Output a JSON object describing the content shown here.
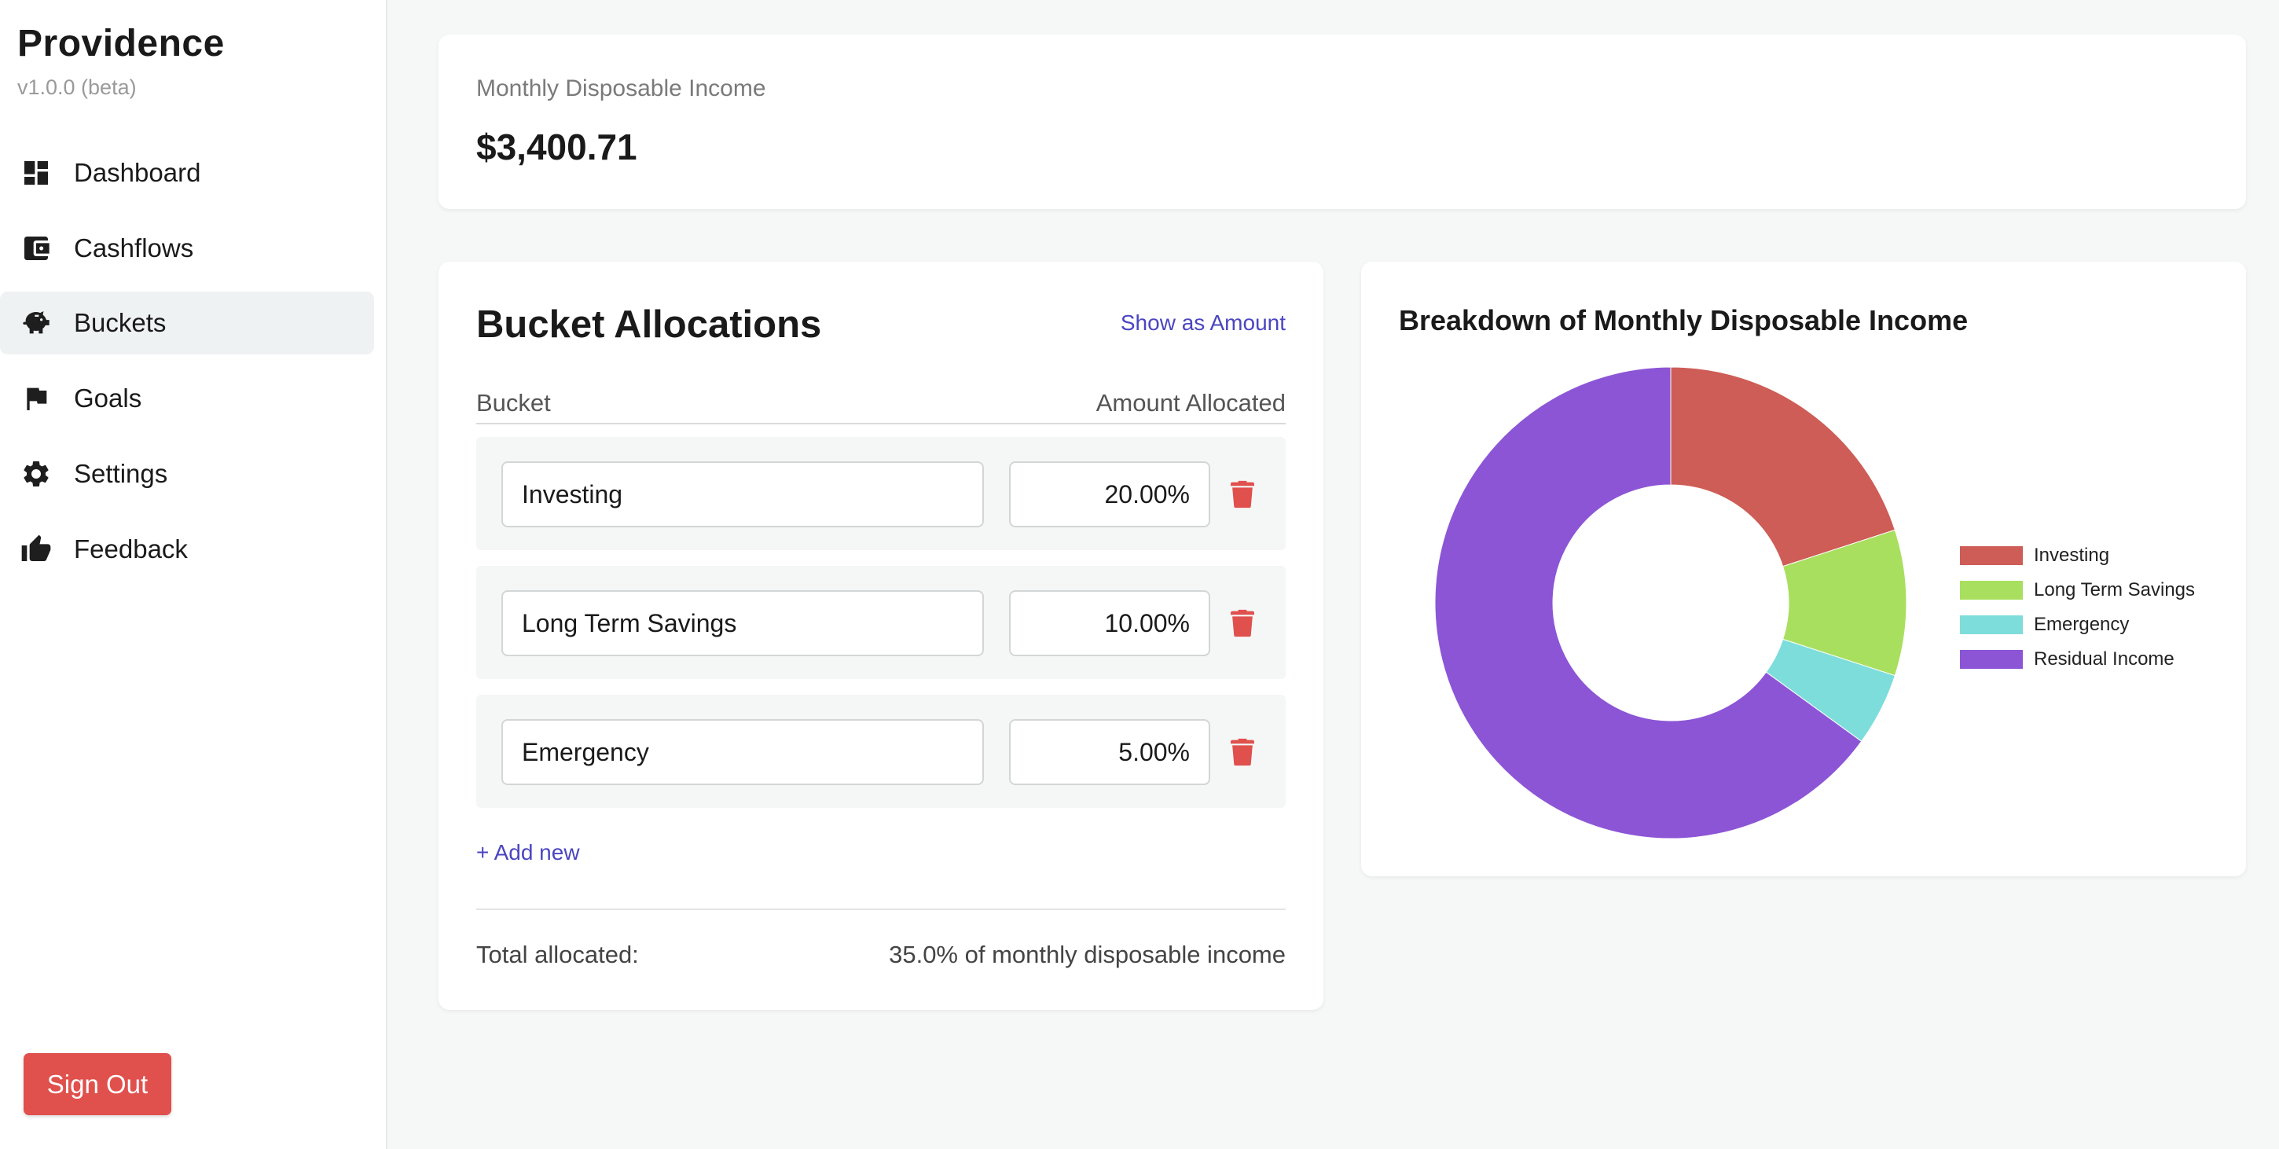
{
  "app": {
    "name": "Providence",
    "version": "v1.0.0 (beta)"
  },
  "sidebar": {
    "items": [
      {
        "label": "Dashboard",
        "icon": "dashboard-icon",
        "active": false
      },
      {
        "label": "Cashflows",
        "icon": "wallet-icon",
        "active": false
      },
      {
        "label": "Buckets",
        "icon": "piggy-bank-icon",
        "active": true
      },
      {
        "label": "Goals",
        "icon": "flag-icon",
        "active": false
      },
      {
        "label": "Settings",
        "icon": "gear-icon",
        "active": false
      },
      {
        "label": "Feedback",
        "icon": "thumbs-up-icon",
        "active": false
      }
    ],
    "sign_out_label": "Sign Out"
  },
  "income": {
    "label": "Monthly Disposable Income",
    "value": "$3,400.71"
  },
  "allocations": {
    "title": "Bucket Allocations",
    "toggle_label": "Show as Amount",
    "col_bucket": "Bucket",
    "col_amount": "Amount Allocated",
    "rows": [
      {
        "name": "Investing",
        "amount": "20.00%"
      },
      {
        "name": "Long Term Savings",
        "amount": "10.00%"
      },
      {
        "name": "Emergency",
        "amount": "5.00%"
      }
    ],
    "add_new_label": "+ Add new",
    "total_label": "Total allocated:",
    "total_value": "35.0% of monthly disposable income"
  },
  "colors": {
    "accent_link": "#4b46c0",
    "danger": "#e0504c",
    "investing": "#cd5d56",
    "long_term_savings": "#a9df5f",
    "emergency": "#7ddddb",
    "residual": "#8c55d6"
  },
  "chart_data": {
    "type": "pie",
    "title": "Breakdown of Monthly Disposable Income",
    "donut": true,
    "legend_position": "right",
    "categories": [
      "Investing",
      "Long Term Savings",
      "Emergency",
      "Residual Income"
    ],
    "values": [
      20,
      10,
      5,
      65
    ],
    "colors": [
      "#cd5d56",
      "#a9df5f",
      "#7ddddb",
      "#8c55d6"
    ]
  }
}
